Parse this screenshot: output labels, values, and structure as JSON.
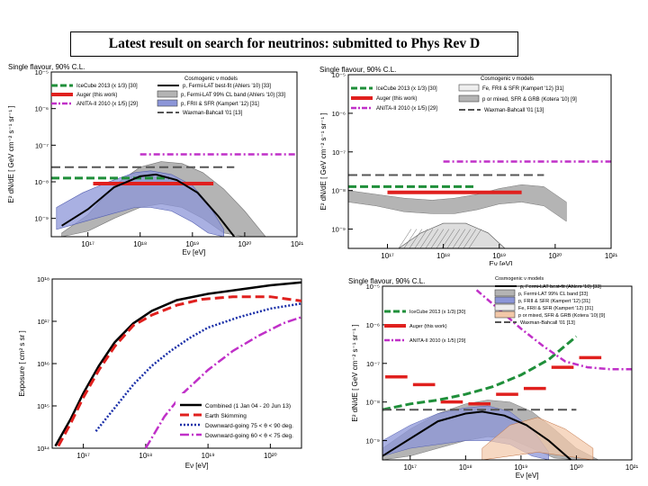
{
  "slide": {
    "title": "Latest result on search for neutrinos: submitted to Phys Rev D"
  },
  "colors": {
    "auger": "#e0201e",
    "icecube": "#1f8f3a",
    "anita": "#c030c8",
    "fermi": "#000000",
    "waxman": "#555555",
    "fermi_band": "#b4b4b4",
    "fr2_band": "#8c96d8"
  },
  "chart_data": [
    {
      "type": "line",
      "id": "flux-limits-fermi",
      "title": "Single flavour, 90% C.L.",
      "xlabel": "Eν [eV]",
      "ylabel": "E² dN/dE [ GeV cm⁻² s⁻¹ sr⁻¹ ]",
      "xlim": [
        16.3,
        21.0
      ],
      "ylim": [
        -9.5,
        -5.0
      ],
      "x_ticks": [
        "10¹⁷",
        "10¹⁸",
        "10¹⁹",
        "10²⁰",
        "10²¹"
      ],
      "y_ticks": [
        "10⁻⁵",
        "10⁻⁶",
        "10⁻⁷",
        "10⁻⁸",
        "10⁻⁹"
      ],
      "legend_header": "Cosmogenic ν models",
      "legend": [
        "IceCube 2013 (x 1/3) [30]",
        "Auger (this work)",
        "ANITA-II 2010 (x 1/5) [29]",
        "p, Fermi-LAT best-fit (Ahlers '10) [33]",
        "p, Fermi-LAT 99% CL band (Ahlers '10) [33]",
        "p, FRII & SFR (Kampert '12) [31]",
        "Waxman-Bahcall '01 [13]"
      ],
      "series": [
        {
          "name": "Auger (this work)",
          "style": "solid-thick",
          "x": [
            17.1,
            19.4
          ],
          "y": [
            -8.05,
            -8.05
          ]
        },
        {
          "name": "IceCube 2013 (x 1/3)",
          "style": "dashed",
          "x": [
            16.3,
            18.55
          ],
          "y": [
            -7.9,
            -7.9
          ]
        },
        {
          "name": "ANITA-II 2010 (x 1/5)",
          "style": "dash-dot",
          "x": [
            18.0,
            21.0
          ],
          "y": [
            -7.25,
            -7.25
          ]
        },
        {
          "name": "Waxman-Bahcall '01",
          "style": "dashed",
          "x": [
            16.3,
            19.8
          ],
          "y": [
            -7.6,
            -7.6
          ]
        },
        {
          "name": "p, Fermi-LAT best-fit",
          "style": "solid",
          "x": [
            16.5,
            17.0,
            17.5,
            18.0,
            18.3,
            18.7,
            19.1,
            19.5,
            19.8
          ],
          "y": [
            -9.2,
            -8.75,
            -8.15,
            -7.85,
            -7.8,
            -7.95,
            -8.3,
            -8.95,
            -9.5
          ]
        }
      ]
    },
    {
      "type": "line",
      "id": "flux-limits-fr2",
      "title": "Single flavour, 90% C.L.",
      "xlabel": "Eν [eV]",
      "ylabel": "E² dN/dE [ GeV cm⁻² s⁻¹ sr⁻¹ ]",
      "xlim": [
        16.3,
        21.0
      ],
      "ylim": [
        -9.5,
        -5.0
      ],
      "x_ticks": [
        "10¹⁷",
        "10¹⁸",
        "10¹⁹",
        "10²⁰",
        "10²¹"
      ],
      "y_ticks": [
        "10⁻⁵",
        "10⁻⁶",
        "10⁻⁷",
        "10⁻⁸",
        "10⁻⁹"
      ],
      "legend_header": "Cosmogenic ν models",
      "legend": [
        "IceCube 2013 (x 1/3) [30]",
        "Auger (this work)",
        "ANITA-II 2010 (x 1/5) [29]",
        "Fe, FRII & SFR (Kampert '12) [31]",
        "p or mixed, SFR & GRB (Kotera '10) [9]",
        "Waxman-Bahcall '01 [13]"
      ],
      "series": [
        {
          "name": "Auger (this work)",
          "style": "solid-thick",
          "x": [
            17.0,
            19.4
          ],
          "y": [
            -8.05,
            -8.05
          ]
        },
        {
          "name": "IceCube 2013 (x 1/3)",
          "style": "dashed",
          "x": [
            16.3,
            18.6
          ],
          "y": [
            -7.9,
            -7.9
          ]
        },
        {
          "name": "ANITA-II 2010 (x 1/5)",
          "style": "dash-dot",
          "x": [
            18.0,
            21.0
          ],
          "y": [
            -7.25,
            -7.25
          ]
        },
        {
          "name": "Waxman-Bahcall '01",
          "style": "dashed",
          "x": [
            16.3,
            19.8
          ],
          "y": [
            -7.6,
            -7.6
          ]
        }
      ]
    },
    {
      "type": "line",
      "id": "exposure",
      "xlabel": "Eν [eV]",
      "ylabel": "Exposure [ cm² s sr ]",
      "xlim": [
        16.5,
        20.5
      ],
      "ylim": [
        14.0,
        18.0
      ],
      "x_ticks": [
        "10¹⁷",
        "10¹⁸",
        "10¹⁹",
        "10²⁰"
      ],
      "y_ticks": [
        "10¹⁸",
        "10¹⁷",
        "10¹⁶",
        "10¹⁵",
        "10¹⁴"
      ],
      "legend": [
        "Combined (1 Jan 04 - 20 Jun 13)",
        "Earth Skimming",
        "Downward-going 75 < θ < 90 deg.",
        "Downward-going 60 < θ < 75 deg."
      ],
      "series": [
        {
          "name": "Combined (1 Jan 04 - 20 Jun 13)",
          "x": [
            16.55,
            16.8,
            17.0,
            17.25,
            17.5,
            17.8,
            18.1,
            18.5,
            19.0,
            19.5,
            20.0,
            20.5
          ],
          "y": [
            14.05,
            14.7,
            15.3,
            15.95,
            16.5,
            16.95,
            17.25,
            17.5,
            17.65,
            17.75,
            17.85,
            17.92
          ]
        },
        {
          "name": "Earth Skimming",
          "x": [
            16.6,
            16.8,
            17.0,
            17.25,
            17.5,
            17.8,
            18.1,
            18.5,
            18.9,
            19.4,
            20.0,
            20.5
          ],
          "y": [
            14.05,
            14.6,
            15.2,
            15.85,
            16.4,
            16.9,
            17.15,
            17.38,
            17.52,
            17.58,
            17.58,
            17.48
          ]
        },
        {
          "name": "Downward-going 75 < θ < 90 deg.",
          "x": [
            17.2,
            17.5,
            17.8,
            18.1,
            18.4,
            18.7,
            19.0,
            19.5,
            20.0,
            20.5
          ],
          "y": [
            14.4,
            14.95,
            15.5,
            15.95,
            16.3,
            16.6,
            16.85,
            17.1,
            17.3,
            17.42
          ]
        },
        {
          "name": "Downward-going 60 < θ < 75 deg.",
          "x": [
            18.0,
            18.3,
            18.6,
            19.0,
            19.4,
            19.8,
            20.2,
            20.5
          ],
          "y": [
            14.0,
            14.75,
            15.3,
            15.85,
            16.3,
            16.65,
            16.95,
            17.1
          ]
        }
      ]
    },
    {
      "type": "line",
      "id": "differential-limits",
      "title": "Single flavour, 90% C.L.",
      "xlabel": "Eν [eV]",
      "ylabel": "E² dN/dE [ GeV cm⁻² s⁻¹ sr⁻¹ ]",
      "xlim": [
        16.5,
        21.0
      ],
      "ylim": [
        -9.5,
        -5.0
      ],
      "x_ticks": [
        "10¹⁷",
        "10¹⁸",
        "10¹⁹",
        "10²⁰",
        "10²¹"
      ],
      "y_ticks": [
        "10⁻⁵",
        "10⁻⁶",
        "10⁻⁷",
        "10⁻⁸",
        "10⁻⁹"
      ],
      "legend_header": "Cosmogenic ν models",
      "legend": [
        "IceCube 2013 (x 1/3) [30]",
        "Auger (this work)",
        "ANITA-II 2010 (x 1/5) [29]",
        "p, Fermi-LAT best-fit (Ahlers '10) [33]",
        "p, Fermi-LAT 99% CL band [33]",
        "p, FRII & SFR (Kampert '12) [31]",
        "Fe, FRII & SFR (Kampert '12) [31]",
        "p or mixed, SFR & GRB (Kotera '10) [9]",
        "Waxman-Bahcall '01 [13]"
      ],
      "series": [
        {
          "name": "Auger (this work)",
          "style": "segments",
          "x": [
            16.75,
            17.25,
            17.75,
            18.25,
            18.75,
            19.25,
            19.75,
            20.25
          ],
          "y": [
            -7.35,
            -7.55,
            -8.0,
            -8.05,
            -7.8,
            -7.65,
            -7.1,
            -6.85
          ]
        },
        {
          "name": "IceCube 2013 (x 1/3)",
          "style": "dashed",
          "x": [
            16.5,
            17.0,
            17.5,
            18.0,
            18.5,
            19.0,
            19.5,
            20.0
          ],
          "y": [
            -8.2,
            -8.05,
            -7.95,
            -7.8,
            -7.6,
            -7.3,
            -6.9,
            -6.3
          ]
        },
        {
          "name": "ANITA-II 2010 (x 1/5)",
          "style": "dash-dot",
          "x": [
            18.2,
            18.6,
            19.0,
            19.4,
            19.8,
            20.2,
            20.6,
            21.0
          ],
          "y": [
            -5.1,
            -5.6,
            -6.1,
            -6.55,
            -6.95,
            -7.1,
            -7.15,
            -7.15
          ]
        },
        {
          "name": "Waxman-Bahcall '01",
          "style": "dashed",
          "x": [
            16.5,
            20.0
          ],
          "y": [
            -8.2,
            -8.2
          ]
        },
        {
          "name": "p, Fermi-LAT best-fit",
          "style": "solid",
          "x": [
            16.5,
            17.0,
            17.5,
            18.0,
            18.3,
            18.7,
            19.1,
            19.5,
            19.9
          ],
          "y": [
            -9.4,
            -8.95,
            -8.5,
            -8.3,
            -8.25,
            -8.35,
            -8.6,
            -9.0,
            -9.5
          ]
        }
      ]
    }
  ]
}
